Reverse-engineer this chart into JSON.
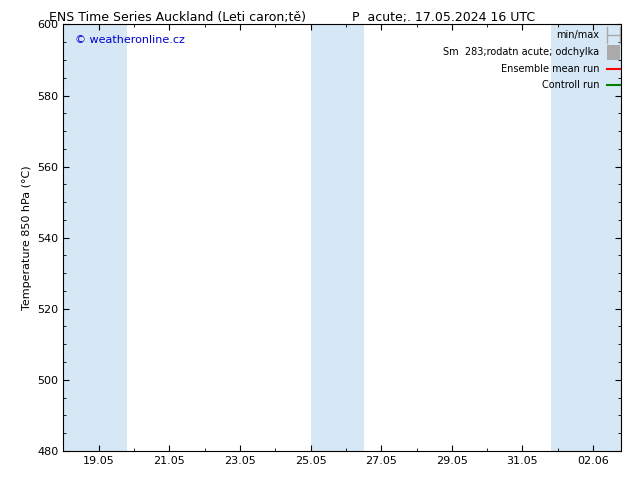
{
  "title_left": "ENS Time Series Auckland (Leti caron;tě)",
  "title_right": "P  acute;. 17.05.2024 16 UTC",
  "ylabel": "Temperature 850 hPa (°C)",
  "watermark": "© weatheronline.cz",
  "ylim": [
    480,
    600
  ],
  "yticks": [
    480,
    500,
    520,
    540,
    560,
    580,
    600
  ],
  "xtick_labels": [
    "19.05",
    "21.05",
    "23.05",
    "25.05",
    "27.05",
    "29.05",
    "31.05",
    "02.06"
  ],
  "shaded_band_color": "#d6e8f5",
  "background_color": "white",
  "watermark_color": "#0000cc",
  "fontsize_title": 9,
  "fontsize_labels": 8,
  "fontsize_ticks": 8,
  "fontsize_watermark": 8,
  "fontsize_legend": 7,
  "legend_items": [
    {
      "label": "min/max",
      "type": "errbar",
      "color": "#aaaaaa"
    },
    {
      "label": "Sm  283;rodatn acute; odchylka",
      "type": "fillbox",
      "color": "#aaaaaa"
    },
    {
      "label": "Ensemble mean run",
      "type": "line",
      "color": "red"
    },
    {
      "label": "Controll run",
      "type": "line",
      "color": "green"
    }
  ]
}
